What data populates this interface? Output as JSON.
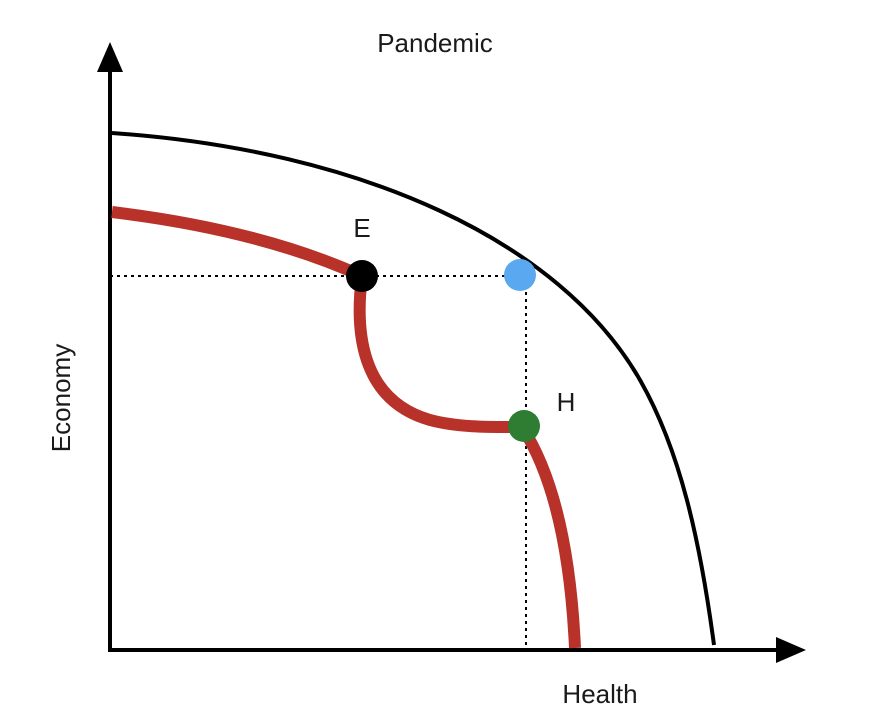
{
  "title": "Pandemic",
  "axes": {
    "x_label": "Health",
    "y_label": "Economy"
  },
  "points": {
    "economy_point": {
      "label": "E",
      "color": "#000000"
    },
    "health_point": {
      "label": "H",
      "color": "#2e7d32"
    },
    "frontier_point": {
      "label": "",
      "color": "#5aa9f0"
    }
  },
  "colors": {
    "axis": "#000000",
    "outer_frontier": "#000000",
    "pandemic_frontier": "#b8322a",
    "guide_lines": "#000000"
  }
}
